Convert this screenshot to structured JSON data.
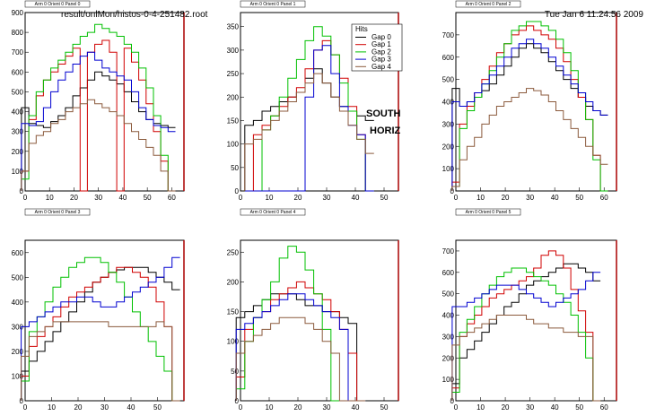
{
  "header": {
    "file": "result/onlMon/histos-0-4-251482.root",
    "timestamp": "Tue Jan  6 11:24:56 2009"
  },
  "annotation": {
    "line1": "SOUTH",
    "line2": "HORIZ"
  },
  "legend": {
    "title": "Hits",
    "entries": [
      "Gap 0",
      "Gap 1",
      "Gap 2",
      "Gap 3",
      "Gap 4"
    ]
  },
  "colors": {
    "gap0": "#000000",
    "gap1": "#d00000",
    "gap2": "#00c000",
    "gap3": "#0000d0",
    "gap4": "#8b5a3c",
    "frame_right": "#aa0000"
  },
  "chart_data": [
    {
      "type": "line",
      "title": "Arm 0 Orient 0 Panel 0",
      "xlim": [
        0,
        65
      ],
      "ylim": [
        0,
        900
      ],
      "xticks": [
        0,
        10,
        20,
        30,
        40,
        50,
        60
      ],
      "yticks": [
        0,
        100,
        200,
        300,
        400,
        500,
        600,
        700,
        800,
        900
      ],
      "x": [
        0,
        3,
        6,
        9,
        12,
        15,
        18,
        21,
        24,
        27,
        30,
        33,
        36,
        39,
        42,
        45,
        48,
        51,
        54,
        57,
        60
      ],
      "series": [
        {
          "values": [
            420,
            340,
            330,
            320,
            350,
            380,
            420,
            480,
            520,
            560,
            600,
            580,
            560,
            540,
            500,
            450,
            400,
            360,
            340,
            330,
            320
          ]
        },
        {
          "values": [
            100,
            360,
            480,
            560,
            600,
            640,
            680,
            720,
            0,
            700,
            740,
            760,
            700,
            0,
            720,
            650,
            560,
            440,
            300,
            150,
            0
          ]
        },
        {
          "values": [
            60,
            380,
            500,
            560,
            620,
            660,
            700,
            740,
            780,
            800,
            840,
            820,
            800,
            780,
            740,
            700,
            620,
            520,
            380,
            180,
            0
          ]
        },
        {
          "values": [
            340,
            330,
            350,
            420,
            500,
            560,
            600,
            640,
            680,
            700,
            660,
            620,
            600,
            580,
            560,
            500,
            420,
            360,
            330,
            320,
            300
          ]
        },
        {
          "values": [
            100,
            240,
            280,
            300,
            340,
            360,
            400,
            420,
            440,
            460,
            440,
            420,
            400,
            380,
            340,
            300,
            260,
            220,
            180,
            100,
            0
          ]
        }
      ]
    },
    {
      "type": "line",
      "title": "Arm 0 Orient 0 Panel 1",
      "xlim": [
        0,
        55
      ],
      "ylim": [
        0,
        380
      ],
      "xticks": [
        0,
        10,
        20,
        30,
        40,
        50
      ],
      "yticks": [
        0,
        50,
        100,
        150,
        200,
        250,
        300,
        350
      ],
      "x": [
        3,
        6,
        9,
        12,
        15,
        18,
        21,
        24,
        27,
        30,
        33,
        36,
        39,
        42,
        45
      ],
      "series": [
        {
          "values": [
            140,
            150,
            170,
            180,
            190,
            200,
            210,
            240,
            260,
            230,
            200,
            180,
            170,
            160,
            150
          ]
        },
        {
          "values": [
            0,
            120,
            140,
            160,
            180,
            200,
            220,
            260,
            300,
            320,
            290,
            240,
            180,
            120,
            0
          ]
        },
        {
          "values": [
            0,
            0,
            130,
            160,
            200,
            240,
            280,
            320,
            350,
            330,
            290,
            230,
            170,
            110,
            0
          ]
        },
        {
          "values": [
            0,
            0,
            0,
            0,
            0,
            0,
            0,
            200,
            300,
            310,
            250,
            180,
            140,
            120,
            0
          ]
        },
        {
          "values": [
            100,
            110,
            130,
            150,
            170,
            190,
            210,
            230,
            250,
            230,
            200,
            170,
            140,
            110,
            80
          ]
        }
      ]
    },
    {
      "type": "line",
      "title": "Arm 0 Orient 0 Panel 2",
      "xlim": [
        0,
        65
      ],
      "ylim": [
        0,
        800
      ],
      "xticks": [
        0,
        10,
        20,
        30,
        40,
        50,
        60
      ],
      "yticks": [
        0,
        100,
        200,
        300,
        400,
        500,
        600,
        700
      ],
      "x": [
        0,
        3,
        6,
        9,
        12,
        15,
        18,
        21,
        24,
        27,
        30,
        33,
        36,
        39,
        42,
        45,
        48,
        51,
        54,
        57,
        60
      ],
      "series": [
        {
          "values": [
            460,
            380,
            400,
            420,
            450,
            480,
            520,
            560,
            600,
            640,
            660,
            640,
            620,
            580,
            540,
            500,
            460,
            420,
            380,
            360,
            340
          ]
        },
        {
          "values": [
            40,
            300,
            380,
            440,
            500,
            560,
            620,
            660,
            700,
            720,
            740,
            720,
            700,
            680,
            640,
            580,
            500,
            420,
            320,
            160,
            0
          ]
        },
        {
          "values": [
            20,
            280,
            360,
            420,
            480,
            540,
            600,
            660,
            720,
            740,
            760,
            760,
            740,
            720,
            680,
            620,
            540,
            440,
            320,
            140,
            0
          ]
        },
        {
          "values": [
            400,
            380,
            400,
            440,
            480,
            520,
            560,
            600,
            640,
            660,
            680,
            660,
            640,
            600,
            560,
            520,
            480,
            440,
            400,
            360,
            340
          ]
        },
        {
          "values": [
            20,
            140,
            200,
            240,
            300,
            340,
            380,
            400,
            420,
            440,
            460,
            450,
            430,
            400,
            360,
            320,
            280,
            240,
            200,
            160,
            120
          ]
        }
      ]
    },
    {
      "type": "line",
      "title": "Arm 0 Orient 0 Panel 3",
      "xlim": [
        0,
        60
      ],
      "ylim": [
        0,
        650
      ],
      "xticks": [
        0,
        10,
        20,
        30,
        40,
        50
      ],
      "yticks": [
        0,
        100,
        200,
        300,
        400,
        500,
        600
      ],
      "x": [
        0,
        3,
        6,
        9,
        12,
        15,
        18,
        21,
        24,
        27,
        30,
        33,
        36,
        39,
        42,
        45,
        48,
        51,
        54,
        57
      ],
      "series": [
        {
          "values": [
            120,
            160,
            200,
            240,
            280,
            320,
            360,
            400,
            440,
            480,
            500,
            520,
            530,
            540,
            540,
            540,
            520,
            500,
            480,
            450
          ]
        },
        {
          "values": [
            100,
            220,
            260,
            300,
            340,
            380,
            420,
            440,
            460,
            480,
            500,
            520,
            540,
            540,
            520,
            500,
            460,
            400,
            300,
            0
          ]
        },
        {
          "values": [
            80,
            280,
            340,
            400,
            460,
            500,
            540,
            560,
            580,
            580,
            560,
            520,
            480,
            420,
            360,
            300,
            240,
            180,
            120,
            0
          ]
        },
        {
          "values": [
            300,
            320,
            340,
            360,
            380,
            400,
            400,
            420,
            420,
            400,
            380,
            380,
            400,
            420,
            440,
            460,
            480,
            500,
            540,
            580
          ]
        },
        {
          "values": [
            180,
            260,
            280,
            300,
            320,
            320,
            320,
            320,
            320,
            320,
            320,
            300,
            300,
            300,
            300,
            300,
            300,
            320,
            300,
            0
          ]
        }
      ]
    },
    {
      "type": "line",
      "title": "Arm 0 Orient 0 Panel 4",
      "xlim": [
        0,
        55
      ],
      "ylim": [
        0,
        270
      ],
      "xticks": [
        0,
        10,
        20,
        30,
        40,
        50
      ],
      "yticks": [
        0,
        50,
        100,
        150,
        200,
        250
      ],
      "x": [
        0,
        3,
        6,
        9,
        12,
        15,
        18,
        21,
        24,
        27,
        30,
        33,
        36,
        39,
        42
      ],
      "series": [
        {
          "values": [
            140,
            150,
            160,
            170,
            180,
            180,
            180,
            170,
            160,
            160,
            150,
            150,
            140,
            130,
            0
          ]
        },
        {
          "values": [
            40,
            120,
            140,
            150,
            170,
            180,
            190,
            200,
            190,
            180,
            170,
            150,
            120,
            80,
            0
          ]
        },
        {
          "values": [
            20,
            100,
            140,
            170,
            200,
            240,
            260,
            250,
            220,
            180,
            120,
            0,
            0,
            0,
            0
          ]
        },
        {
          "values": [
            120,
            130,
            140,
            150,
            160,
            170,
            180,
            180,
            170,
            160,
            150,
            140,
            120,
            0,
            0
          ]
        },
        {
          "values": [
            80,
            100,
            110,
            120,
            130,
            140,
            140,
            140,
            130,
            120,
            100,
            80,
            0,
            0,
            0
          ]
        }
      ]
    },
    {
      "type": "line",
      "title": "Arm 0 Orient 0 Panel 5",
      "xlim": [
        0,
        65
      ],
      "ylim": [
        0,
        750
      ],
      "xticks": [
        0,
        10,
        20,
        30,
        40,
        50,
        60
      ],
      "yticks": [
        0,
        100,
        200,
        300,
        400,
        500,
        600,
        700
      ],
      "x": [
        0,
        3,
        6,
        9,
        12,
        15,
        18,
        21,
        24,
        27,
        30,
        33,
        36,
        39,
        42,
        45,
        48,
        51,
        54,
        57
      ],
      "series": [
        {
          "values": [
            80,
            200,
            240,
            280,
            320,
            360,
            400,
            440,
            460,
            500,
            540,
            560,
            580,
            600,
            620,
            640,
            640,
            620,
            600,
            560
          ]
        },
        {
          "values": [
            60,
            300,
            360,
            400,
            440,
            480,
            500,
            520,
            540,
            560,
            580,
            620,
            680,
            700,
            680,
            620,
            520,
            420,
            320,
            0
          ]
        },
        {
          "values": [
            40,
            320,
            380,
            440,
            500,
            540,
            580,
            600,
            620,
            620,
            600,
            580,
            560,
            540,
            500,
            460,
            400,
            320,
            200,
            0
          ]
        },
        {
          "values": [
            440,
            440,
            460,
            480,
            500,
            520,
            540,
            540,
            540,
            520,
            500,
            480,
            460,
            440,
            460,
            480,
            500,
            520,
            560,
            600
          ]
        },
        {
          "values": [
            260,
            300,
            320,
            340,
            360,
            380,
            400,
            400,
            400,
            400,
            380,
            360,
            360,
            340,
            340,
            320,
            320,
            300,
            300,
            0
          ]
        }
      ]
    }
  ]
}
